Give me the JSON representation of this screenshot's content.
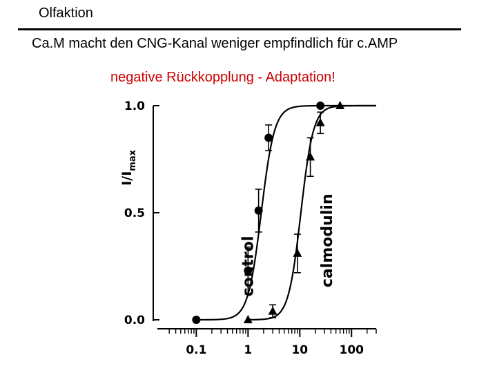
{
  "slide": {
    "title": "Olfaktion",
    "subtitle": "Ca.M macht den CNG-Kanal weniger empfindlich für c.AMP",
    "note": "negative Rückkopplung - Adaptation!",
    "note_color": "#cc0000"
  },
  "chart_data": {
    "type": "scatter",
    "x_scale": "log",
    "xlim": [
      0.02,
      300
    ],
    "ylim": [
      0.0,
      1.0
    ],
    "ylabel_main": "I/I",
    "ylabel_sub": "max",
    "x_ticks": [
      {
        "value": 0.1,
        "label": "0.1"
      },
      {
        "value": 1,
        "label": "1"
      },
      {
        "value": 10,
        "label": "10"
      },
      {
        "value": 100,
        "label": "100"
      }
    ],
    "y_ticks": [
      {
        "value": 0.0,
        "label": "0.0"
      },
      {
        "value": 0.5,
        "label": "0.5"
      },
      {
        "value": 1.0,
        "label": "1.0"
      }
    ],
    "series": [
      {
        "name": "control",
        "marker": "circle",
        "k_half": 1.8,
        "hill_n": 3.4,
        "points": [
          {
            "x": 0.1,
            "y": 0.0
          },
          {
            "x": 1.0,
            "y": 0.23,
            "err": 0.11
          },
          {
            "x": 1.6,
            "y": 0.51,
            "err": 0.1
          },
          {
            "x": 2.5,
            "y": 0.85,
            "err": 0.06
          },
          {
            "x": 25,
            "y": 1.0
          }
        ]
      },
      {
        "name": "calmodulin",
        "marker": "triangle",
        "k_half": 10.5,
        "hill_n": 3.6,
        "points": [
          {
            "x": 1.0,
            "y": 0.0
          },
          {
            "x": 3.0,
            "y": 0.04,
            "err": 0.03
          },
          {
            "x": 9.0,
            "y": 0.31,
            "err": 0.09
          },
          {
            "x": 16,
            "y": 0.76,
            "err": 0.09
          },
          {
            "x": 25,
            "y": 0.92,
            "err": 0.05
          },
          {
            "x": 60,
            "y": 1.0
          }
        ]
      }
    ]
  }
}
